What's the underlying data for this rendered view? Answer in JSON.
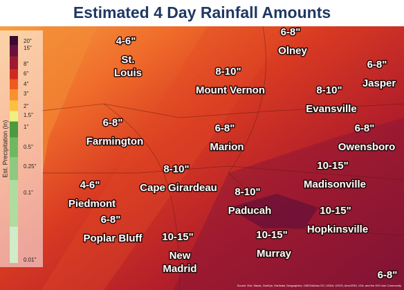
{
  "title": "Estimated 4 Day Rainfall Amounts",
  "legend": {
    "title": "Est. Precipitation (in)",
    "labels": [
      "20\"",
      "15\"",
      "8\"",
      "6\"",
      "4\"",
      "3\"",
      "2\"",
      "1.5\"",
      "1\"",
      "0.5\"",
      "0.25\"",
      "0.1\"",
      "0.01\""
    ]
  },
  "places": [
    {
      "amount": "4-6\"",
      "name": [
        "St.",
        "Louis"
      ]
    },
    {
      "amount": "6-8\"",
      "name": [
        "Olney"
      ]
    },
    {
      "amount": "8-10\"",
      "name": [
        "Mount Vernon"
      ]
    },
    {
      "amount": "6-8\"",
      "name": [
        "Jasper"
      ]
    },
    {
      "amount": "8-10\"",
      "name": [
        "Evansville"
      ]
    },
    {
      "amount": "6-8\"",
      "name": [
        "Farmington"
      ]
    },
    {
      "amount": "6-8\"",
      "name": [
        "Marion"
      ]
    },
    {
      "amount": "6-8\"",
      "name": [
        "Owensboro"
      ]
    },
    {
      "amount": "8-10\"",
      "name": [
        "Cape Girardeau"
      ]
    },
    {
      "amount": "10-15\"",
      "name": [
        "Madisonville"
      ]
    },
    {
      "amount": "4-6\"",
      "name": [
        "Piedmont"
      ]
    },
    {
      "amount": "8-10\"",
      "name": [
        "Paducah"
      ]
    },
    {
      "amount": "10-15\"",
      "name": [
        "Hopkinsville"
      ]
    },
    {
      "amount": "6-8\"",
      "name": [
        "Poplar Bluff"
      ]
    },
    {
      "amount": "10-15\"",
      "name": [
        "New",
        "Madrid"
      ]
    },
    {
      "amount": "10-15\"",
      "name": [
        "Murray"
      ]
    },
    {
      "amount": "6-8\""
    }
  ],
  "attribution": "Source: Esri, Maxar, GeoEye, Earthstar Geographics, CNES/Airbus DS, USDA, USGS, AeroGRID, IGN, and the GIS User Community"
}
